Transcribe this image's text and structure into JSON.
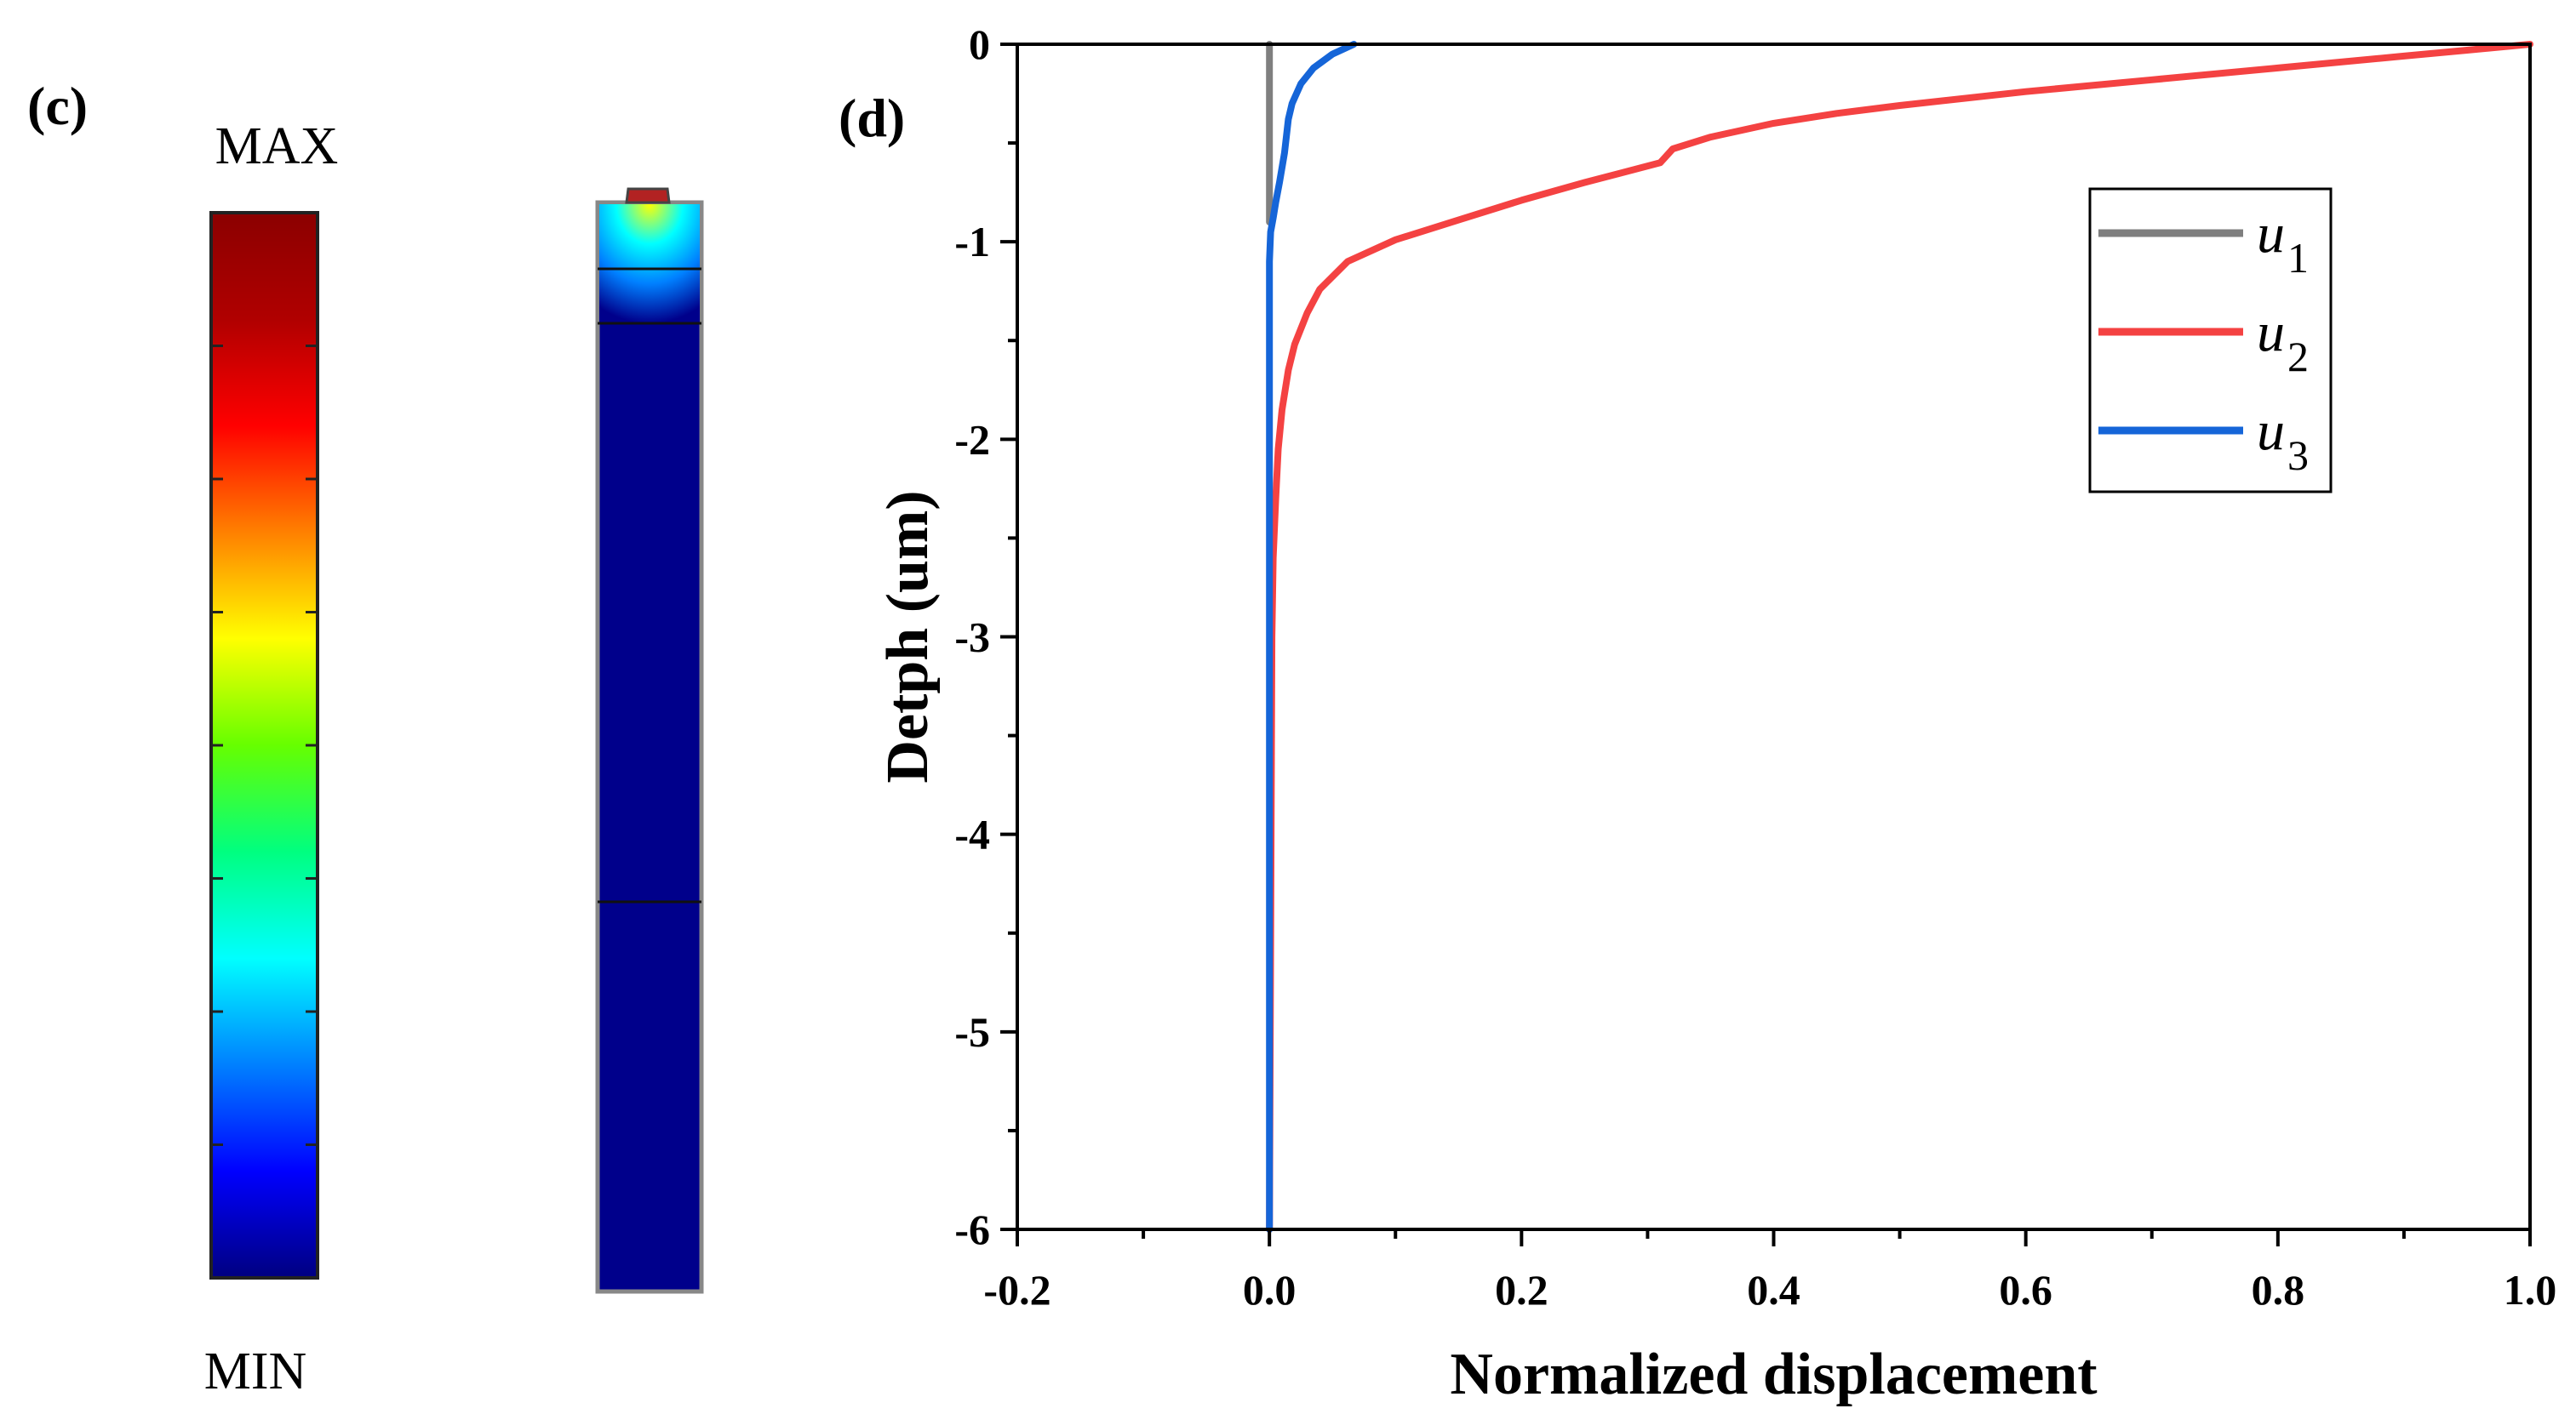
{
  "panel_c": {
    "label": "(c)",
    "colorbar": {
      "max_label": "MAX",
      "min_label": "MIN",
      "tick_count": 8,
      "colors": [
        "#000080",
        "#0000ff",
        "#0080ff",
        "#00ffff",
        "#00ff80",
        "#66ff00",
        "#ffff00",
        "#ff8000",
        "#ff0000",
        "#b00000",
        "#8b0000"
      ]
    },
    "field_plot": {
      "background_color": "#00008b",
      "glow_colors": [
        "#ffff00",
        "#00ffff",
        "#0080ff",
        "#00008b"
      ],
      "cap_color": "#b22222",
      "layer_boundary_count": 4
    }
  },
  "panel_d": {
    "label": "(d)"
  },
  "chart_data": {
    "type": "line",
    "title": "",
    "xlabel": "Normalized displacement",
    "ylabel": "Detph (um)",
    "xlim": [
      -0.2,
      1.0
    ],
    "ylim": [
      -6,
      0
    ],
    "xticks": [
      -0.2,
      0.0,
      0.2,
      0.4,
      0.6,
      0.8,
      1.0
    ],
    "xtick_labels": [
      "-0.2",
      "0.0",
      "0.2",
      "0.4",
      "0.6",
      "0.8",
      "1.0"
    ],
    "yticks": [
      0,
      -1,
      -2,
      -3,
      -4,
      -5,
      -6
    ],
    "ytick_labels": [
      "0",
      "-1",
      "-2",
      "-3",
      "-4",
      "-5",
      "-6"
    ],
    "legend_position": "top-right",
    "series": [
      {
        "name": "u",
        "subscript": "1",
        "color": "#7f7f7f",
        "x": [
          0.0,
          0.0
        ],
        "y": [
          0,
          -0.9
        ]
      },
      {
        "name": "u",
        "subscript": "2",
        "color": "#f44242",
        "x": [
          1.0,
          0.95,
          0.9,
          0.8,
          0.7,
          0.6,
          0.5,
          0.45,
          0.4,
          0.35,
          0.32,
          0.31,
          0.25,
          0.2,
          0.15,
          0.1,
          0.062,
          0.04,
          0.03,
          0.02,
          0.015,
          0.01,
          0.007,
          0.005,
          0.003,
          0.002,
          0.0
        ],
        "y": [
          0,
          -0.03,
          -0.06,
          -0.12,
          -0.18,
          -0.24,
          -0.31,
          -0.35,
          -0.4,
          -0.47,
          -0.53,
          -0.6,
          -0.7,
          -0.79,
          -0.89,
          -0.99,
          -1.1,
          -1.24,
          -1.36,
          -1.52,
          -1.65,
          -1.85,
          -2.05,
          -2.3,
          -2.6,
          -3.0,
          -6.0
        ]
      },
      {
        "name": "u",
        "subscript": "3",
        "color": "#1565d8",
        "x": [
          0.067,
          0.05,
          0.035,
          0.025,
          0.018,
          0.015,
          0.012,
          0.008,
          0.005,
          0.003,
          0.001,
          0.0,
          0.0
        ],
        "y": [
          0,
          -0.05,
          -0.12,
          -0.2,
          -0.3,
          -0.38,
          -0.55,
          -0.7,
          -0.8,
          -0.88,
          -0.95,
          -1.1,
          -6.0
        ]
      }
    ]
  }
}
